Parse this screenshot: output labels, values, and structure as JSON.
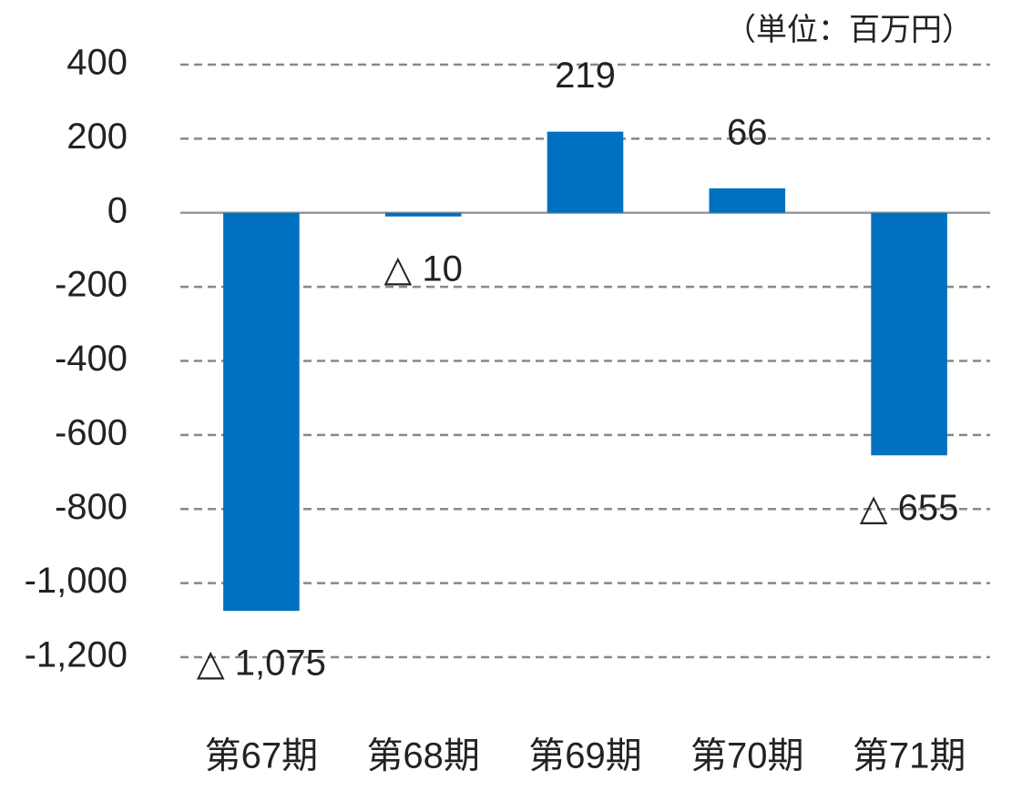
{
  "chart_data": {
    "type": "bar",
    "annotation": "（単位：百万円）",
    "categories": [
      "第67期",
      "第68期",
      "第69期",
      "第70期",
      "第71期"
    ],
    "values": [
      -1075,
      -10,
      219,
      66,
      -655
    ],
    "value_labels": [
      "△ 1,075",
      "△ 10",
      "219",
      "66",
      "△ 655"
    ],
    "color": "#0070c0",
    "ylim": [
      -1200,
      400
    ],
    "yticks": [
      {
        "value": -1200,
        "label": "-1,200"
      },
      {
        "value": -1000,
        "label": "-1,000"
      },
      -800,
      -600,
      -400,
      -200,
      0,
      200,
      400
    ],
    "grid": true
  }
}
